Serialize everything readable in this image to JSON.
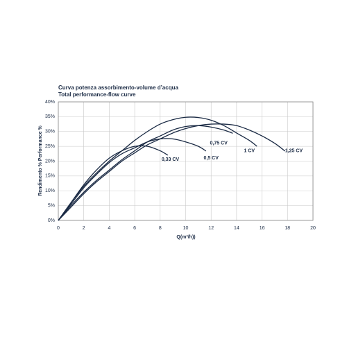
{
  "chart_data": {
    "type": "line",
    "title": "Curva potenza assorbimento-volume d’acqua",
    "subtitle": "Total performance-flow curve",
    "x_label": "Q(m³/h))",
    "y_label": "Rendimento %  Performance %",
    "xlim": [
      0,
      20
    ],
    "xticks": [
      0,
      2,
      4,
      6,
      8,
      10,
      12,
      14,
      16,
      18,
      20
    ],
    "ylim": [
      0,
      40
    ],
    "yticks": [
      {
        "value": 0,
        "label": "0%"
      },
      {
        "value": 5,
        "label": "5%"
      },
      {
        "value": 10,
        "label": "10%"
      },
      {
        "value": 15,
        "label": "15%"
      },
      {
        "value": 20,
        "label": "20%"
      },
      {
        "value": 25,
        "label": "25%"
      },
      {
        "value": 30,
        "label": "30%"
      },
      {
        "value": 35,
        "label": "35%"
      },
      {
        "value": 40,
        "label": "40%"
      }
    ],
    "grid": true,
    "series": [
      {
        "name": "0,33 CV",
        "color": "#1a2a44",
        "x": [
          0,
          1,
          2,
          3,
          4,
          5,
          6,
          7,
          8,
          8.6
        ],
        "values": [
          0,
          6,
          12,
          17,
          21,
          23.5,
          25,
          25,
          23.5,
          22
        ]
      },
      {
        "name": "0,5 CV",
        "color": "#1a2a44",
        "x": [
          0,
          1,
          2,
          3,
          4,
          5,
          6,
          7,
          8,
          9,
          10,
          11,
          11.6
        ],
        "values": [
          0,
          5.5,
          11,
          15.5,
          19.5,
          22.5,
          24.5,
          26.5,
          27.5,
          27.5,
          26.5,
          25,
          23.4
        ]
      },
      {
        "name": "0,75 CV",
        "color": "#1a2a44",
        "x": [
          0,
          1,
          2,
          3,
          4,
          5,
          6,
          7,
          8,
          9,
          10,
          11,
          12,
          13,
          13.7
        ],
        "values": [
          0,
          5,
          9.5,
          13.5,
          17,
          20.5,
          23.5,
          26.5,
          28.5,
          30.5,
          31.7,
          32,
          31.5,
          30.5,
          29.4
        ]
      },
      {
        "name": "1 CV",
        "color": "#1a2a44",
        "x": [
          0,
          1,
          2,
          3,
          4,
          5,
          6,
          7,
          8,
          9,
          10,
          11,
          12,
          13,
          14,
          15,
          15.6
        ],
        "values": [
          0,
          6,
          11.5,
          16,
          20,
          23.5,
          27,
          30,
          32.5,
          34,
          34.8,
          34.7,
          33.8,
          32,
          29.5,
          27,
          25
        ]
      },
      {
        "name": "1,25 CV",
        "color": "#1a2a44",
        "x": [
          0,
          1,
          2,
          3,
          4,
          5,
          6,
          7,
          8,
          9,
          10,
          11,
          12,
          13,
          14,
          15,
          16,
          17,
          17.8
        ],
        "values": [
          0,
          4.5,
          9,
          13,
          16.5,
          20,
          22.8,
          25.5,
          27.5,
          29.5,
          31,
          32,
          32.5,
          32.5,
          32,
          30.5,
          28.5,
          26,
          23.4
        ]
      }
    ],
    "label_x": [
      8.8,
      12,
      12.6,
      15,
      18.5
    ],
    "label_y": [
      20.5,
      21,
      26,
      23.5,
      23.5
    ]
  }
}
